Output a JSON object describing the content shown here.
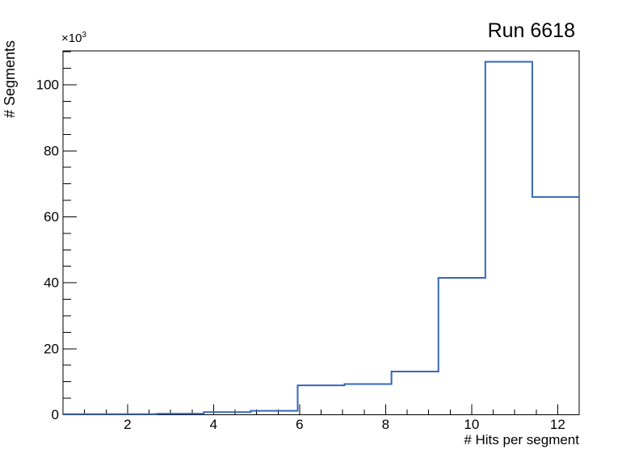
{
  "page": {
    "background_color": "#ffffff"
  },
  "chart_data": {
    "type": "histogram",
    "title": "Run 6618",
    "xlabel": "# Hits per segment",
    "ylabel": "# Segments",
    "y_axis_multiplier": {
      "base": "×10",
      "exponent": "3"
    },
    "x_range": [
      0.5,
      12.5
    ],
    "y_range_thousands": [
      0,
      110.3
    ],
    "bin_edges": [
      0.5,
      1.591,
      2.682,
      3.773,
      4.864,
      5.955,
      7.045,
      8.136,
      9.227,
      10.318,
      11.409,
      12.5
    ],
    "counts_thousands": [
      0.2,
      0.2,
      0.3,
      0.8,
      1.2,
      8.9,
      9.3,
      13.1,
      41.5,
      107.0,
      66.0
    ],
    "x_major_ticks": [
      2,
      4,
      6,
      8,
      10,
      12
    ],
    "x_minor_tick_step": 0.5,
    "y_major_ticks": [
      0,
      20,
      40,
      60,
      80,
      100
    ],
    "y_minor_tick_step": 5,
    "grid": false,
    "legend": "none",
    "line_color": "#3566bd",
    "axis_color": "#000000",
    "ticks_inside": true
  }
}
